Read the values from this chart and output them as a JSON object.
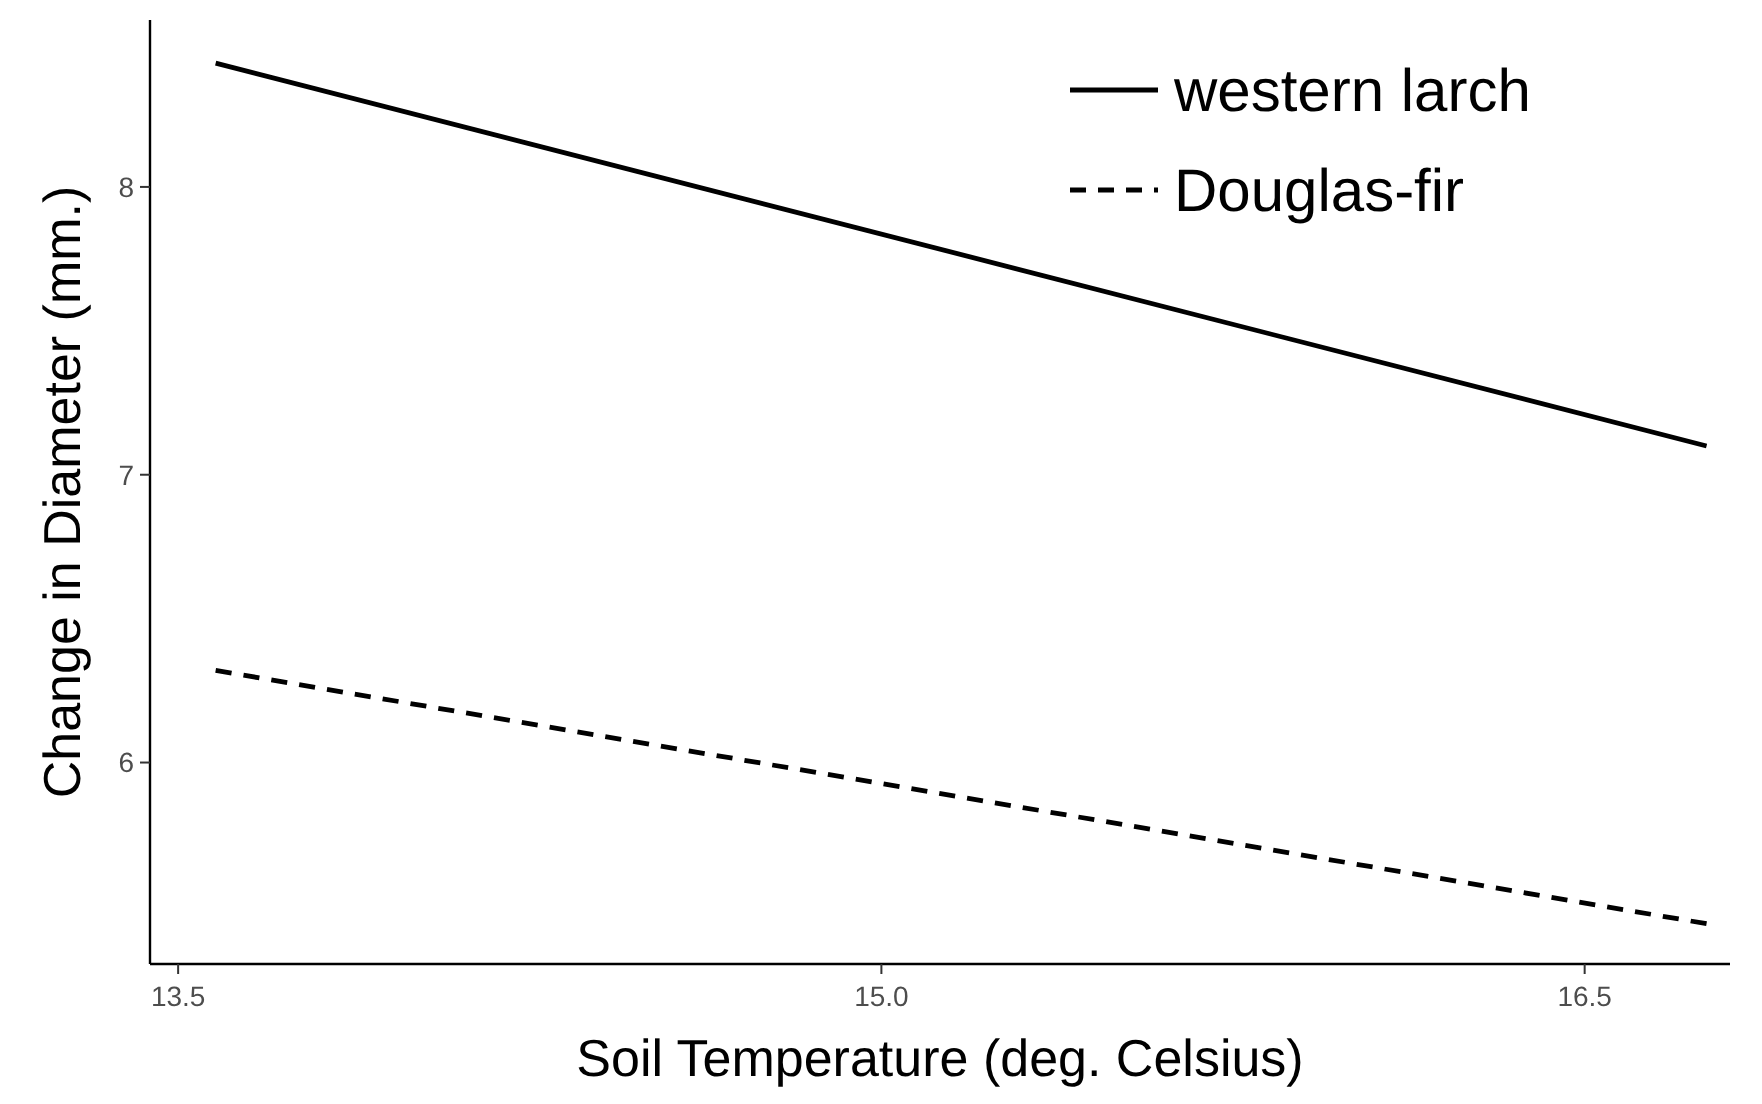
{
  "chart_data": {
    "type": "line",
    "xlabel": "Soil Temperature (deg. Celsius)",
    "ylabel": "Change in Diameter (mm.)",
    "x": [
      13.58,
      16.76
    ],
    "series": [
      {
        "name": "western larch",
        "color": "#000000",
        "values": [
          8.43,
          7.1
        ],
        "line_style": "solid"
      },
      {
        "name": "Douglas-fir",
        "color": "#000000",
        "values": [
          6.32,
          5.44
        ],
        "line_style": "dashed"
      }
    ],
    "xlim": [
      13.44,
      16.81
    ],
    "ylim": [
      5.3,
      8.58
    ],
    "xticks": [
      13.5,
      {
        "value": 15,
        "label": "15.0"
      },
      16.5
    ],
    "yticks": [
      6,
      7,
      8
    ],
    "grid": false,
    "legend": "top right"
  }
}
